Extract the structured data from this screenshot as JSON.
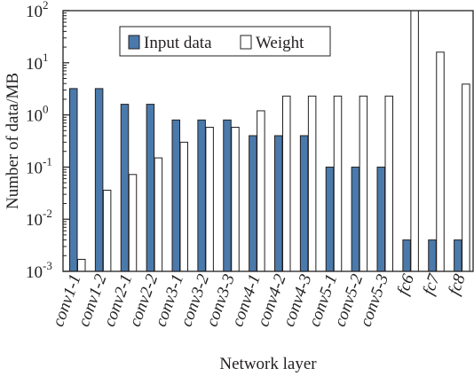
{
  "chart_data": {
    "type": "bar",
    "title": "",
    "xlabel": "Network layer",
    "ylabel": "Number of data/MB",
    "yscale": "log",
    "ylim": [
      0.001,
      100
    ],
    "grid": false,
    "legend_position": "top-left",
    "y_ticks": [
      {
        "value": 0.001,
        "base": "10",
        "exp": "-3"
      },
      {
        "value": 0.01,
        "base": "10",
        "exp": "-2"
      },
      {
        "value": 0.1,
        "base": "10",
        "exp": "-1"
      },
      {
        "value": 1,
        "base": "10",
        "exp": "0"
      },
      {
        "value": 10,
        "base": "10",
        "exp": "1"
      },
      {
        "value": 100,
        "base": "10",
        "exp": "2"
      }
    ],
    "categories": [
      "conv1-1",
      "conv1-2",
      "conv2-1",
      "conv2-2",
      "conv3-1",
      "conv3-2",
      "conv3-3",
      "conv4-1",
      "conv4-2",
      "conv4-3",
      "conv5-1",
      "conv5-2",
      "conv5-3",
      "fc6",
      "fc7",
      "fc8"
    ],
    "series": [
      {
        "name": "Input data",
        "color": "#4a7aab",
        "values": [
          3.2,
          3.2,
          1.6,
          1.6,
          0.8,
          0.8,
          0.8,
          0.4,
          0.4,
          0.4,
          0.1,
          0.1,
          0.1,
          0.004,
          0.004,
          0.004
        ]
      },
      {
        "name": "Weight",
        "color": "#ffffff",
        "values": [
          0.0017,
          0.036,
          0.072,
          0.15,
          0.3,
          0.58,
          0.58,
          1.2,
          2.3,
          2.3,
          2.3,
          2.3,
          2.3,
          100,
          16,
          3.9
        ]
      }
    ]
  }
}
